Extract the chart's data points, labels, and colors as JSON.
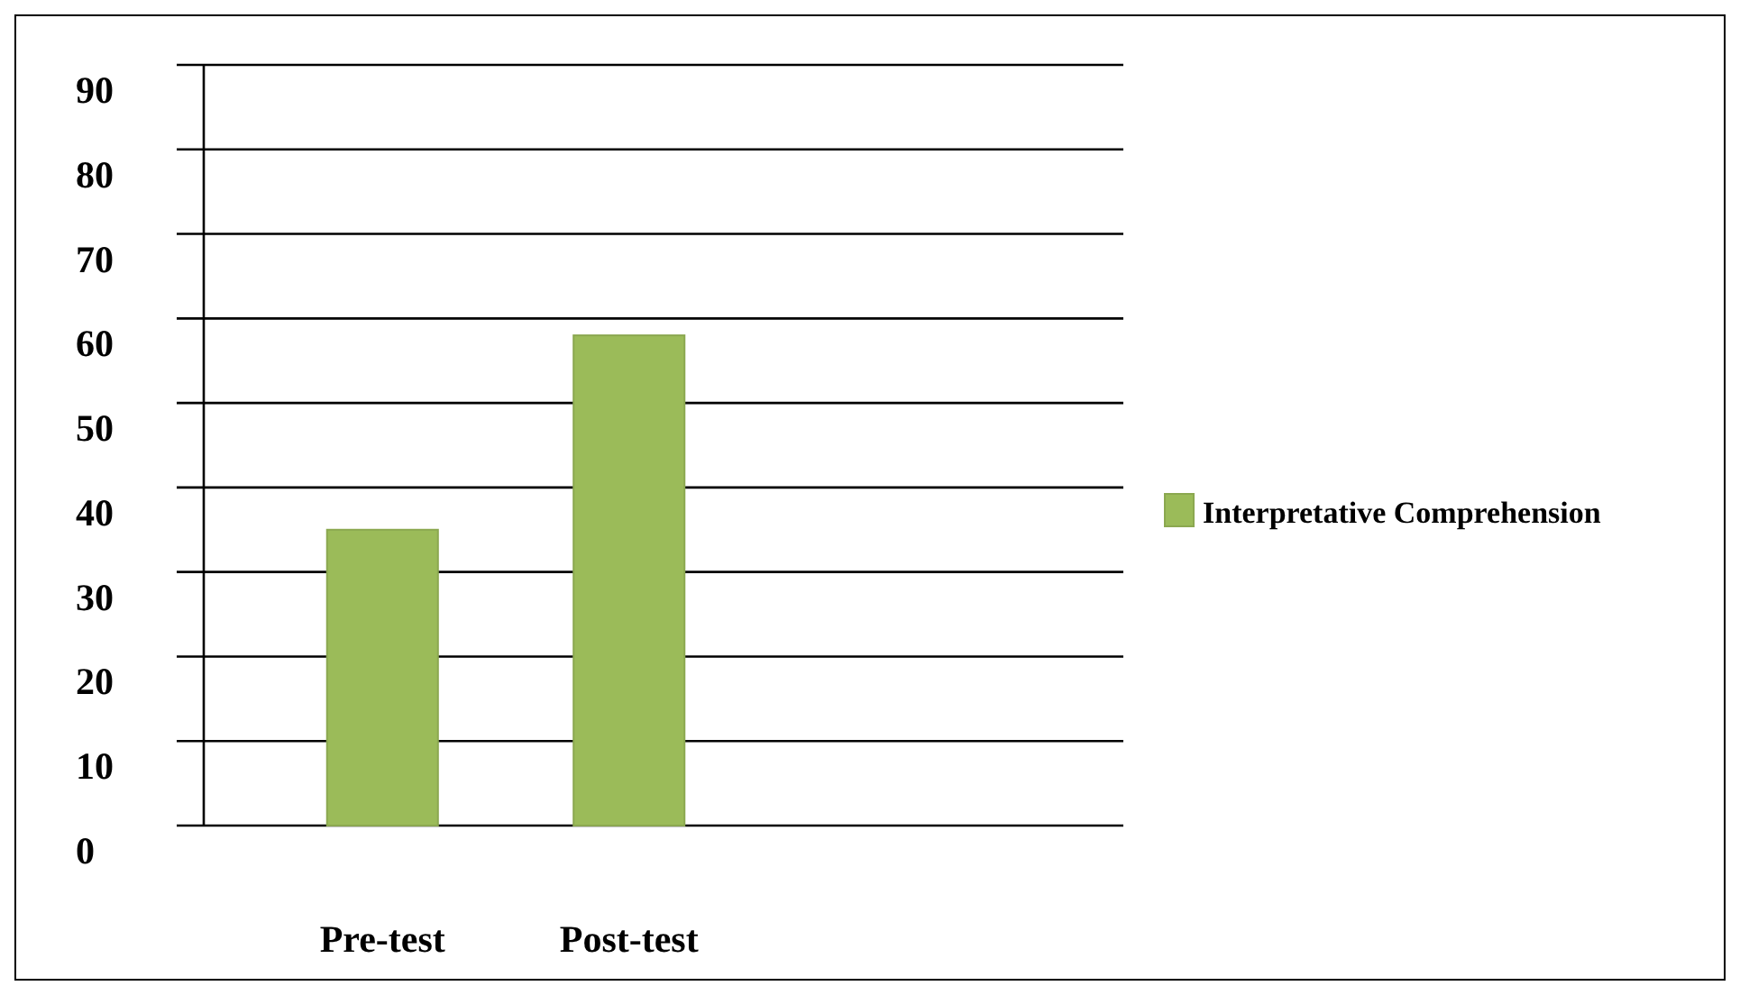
{
  "chart_data": {
    "type": "bar",
    "categories": [
      "Pre-test",
      "Post-test"
    ],
    "series": [
      {
        "name": "Interpretative Comprehension",
        "color": "#9bbb59",
        "values": [
          35,
          58
        ]
      }
    ],
    "ylim": [
      0,
      90
    ],
    "yticks": [
      0,
      10,
      20,
      30,
      40,
      50,
      60,
      70,
      80,
      90
    ],
    "grid": "y",
    "legend": "right"
  }
}
